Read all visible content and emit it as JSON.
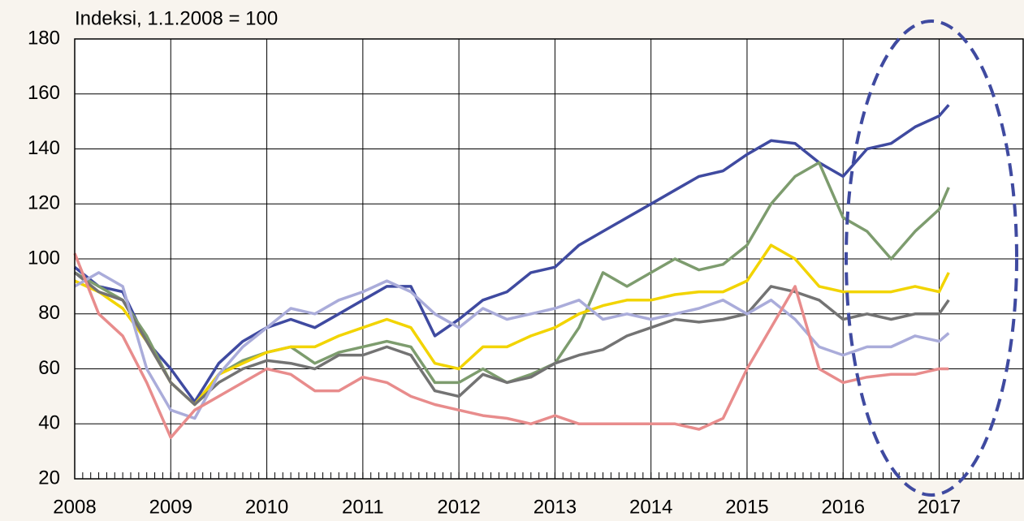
{
  "chart_data": {
    "type": "line",
    "y_label": "Indeksi, 1.1.2008 = 100",
    "x": [
      2008,
      2008.25,
      2008.5,
      2008.75,
      2009,
      2009.25,
      2009.5,
      2009.75,
      2010,
      2010.25,
      2010.5,
      2010.75,
      2011,
      2011.25,
      2011.5,
      2011.75,
      2012,
      2012.25,
      2012.5,
      2012.75,
      2013,
      2013.25,
      2013.5,
      2013.75,
      2014,
      2014.25,
      2014.5,
      2014.75,
      2015,
      2015.25,
      2015.5,
      2015.75,
      2016,
      2016.25,
      2016.5,
      2016.75,
      2017,
      2017.1
    ],
    "series": [
      {
        "color": "#3f4aa0",
        "values": [
          97,
          90,
          88,
          70,
          60,
          48,
          62,
          70,
          75,
          78,
          75,
          80,
          85,
          90,
          90,
          72,
          78,
          85,
          88,
          95,
          97,
          105,
          110,
          115,
          120,
          125,
          130,
          132,
          138,
          143,
          142,
          135,
          130,
          140,
          142,
          148,
          152,
          156
        ]
      },
      {
        "color": "#7d9c6e",
        "values": [
          95,
          90,
          85,
          72,
          55,
          47,
          58,
          63,
          66,
          68,
          62,
          66,
          68,
          70,
          68,
          55,
          55,
          60,
          55,
          58,
          62,
          75,
          95,
          90,
          95,
          100,
          96,
          98,
          105,
          120,
          130,
          135,
          115,
          110,
          100,
          110,
          118,
          126
        ]
      },
      {
        "color": "#f2d400",
        "values": [
          92,
          88,
          82,
          70,
          55,
          47,
          58,
          62,
          66,
          68,
          68,
          72,
          75,
          78,
          75,
          62,
          60,
          68,
          68,
          72,
          75,
          80,
          83,
          85,
          85,
          87,
          88,
          88,
          92,
          105,
          100,
          90,
          88,
          88,
          88,
          90,
          88,
          95
        ]
      },
      {
        "color": "#737373",
        "values": [
          95,
          88,
          85,
          70,
          55,
          47,
          55,
          60,
          63,
          62,
          60,
          65,
          65,
          68,
          65,
          52,
          50,
          58,
          55,
          57,
          62,
          65,
          67,
          72,
          75,
          78,
          77,
          78,
          80,
          90,
          88,
          85,
          78,
          80,
          78,
          80,
          80,
          85
        ]
      },
      {
        "color": "#aaacda",
        "values": [
          90,
          95,
          90,
          60,
          45,
          42,
          58,
          68,
          75,
          82,
          80,
          85,
          88,
          92,
          88,
          80,
          75,
          82,
          78,
          80,
          82,
          85,
          78,
          80,
          78,
          80,
          82,
          85,
          80,
          85,
          78,
          68,
          65,
          68,
          68,
          72,
          70,
          73
        ]
      },
      {
        "color": "#e88c8c",
        "values": [
          102,
          80,
          72,
          55,
          35,
          45,
          50,
          55,
          60,
          58,
          52,
          52,
          57,
          55,
          50,
          47,
          45,
          43,
          42,
          40,
          43,
          40,
          40,
          40,
          40,
          40,
          38,
          42,
          60,
          75,
          90,
          60,
          55,
          57,
          58,
          58,
          60,
          60
        ]
      }
    ],
    "xlim": [
      2008,
      2017.875
    ],
    "xticks": [
      2008,
      2009,
      2010,
      2011,
      2012,
      2013,
      2014,
      2015,
      2016,
      2017
    ],
    "x_minor_ticks": 12,
    "ylim": [
      20,
      180
    ],
    "yticks": [
      20,
      40,
      60,
      80,
      100,
      120,
      140,
      160,
      180
    ],
    "grid": true
  }
}
